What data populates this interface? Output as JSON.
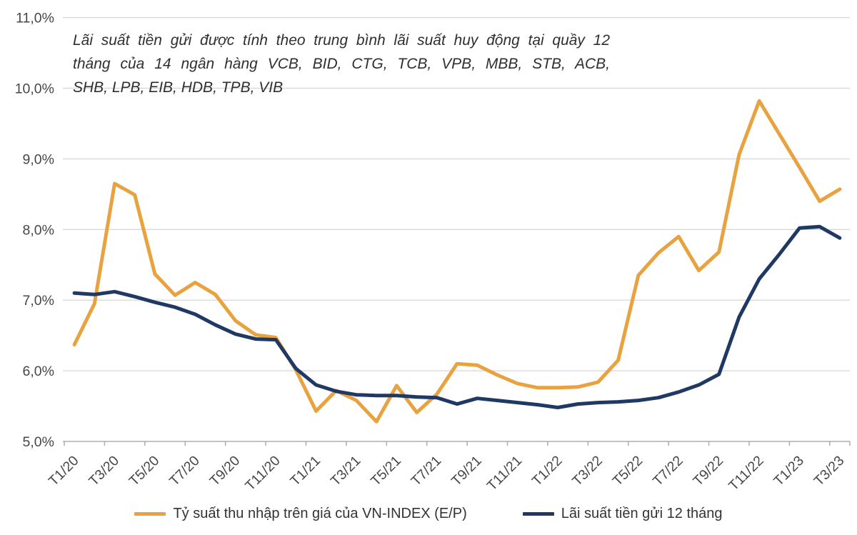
{
  "annotation": {
    "lines": [
      "Lãi suất tiền gửi được tính theo trung bình lãi suất huy động tại quầy 12",
      "tháng của 14 ngân hàng VCB, BID, CTG, TCB, VPB, MBB, STB, ACB,",
      "SHB, LPB, EIB, HDB, TPB, VIB"
    ]
  },
  "colors": {
    "ep_line": "#E9A240",
    "deposit_line": "#1F3864",
    "gridline": "#D9D9D9",
    "axis": "#ADADAD",
    "tick_label": "#474747"
  },
  "chart_data": {
    "type": "line",
    "x": [
      "T1/20",
      "T2/20",
      "T3/20",
      "T4/20",
      "T5/20",
      "T6/20",
      "T7/20",
      "T8/20",
      "T9/20",
      "T10/20",
      "T11/20",
      "T12/20",
      "T1/21",
      "T2/21",
      "T3/21",
      "T4/21",
      "T5/21",
      "T6/21",
      "T7/21",
      "T8/21",
      "T9/21",
      "T10/21",
      "T11/21",
      "T12/21",
      "T1/22",
      "T2/22",
      "T3/22",
      "T4/22",
      "T5/22",
      "T6/22",
      "T7/22",
      "T8/22",
      "T9/22",
      "T10/22",
      "T11/22",
      "T12/22",
      "T1/23",
      "T2/23",
      "T3/23"
    ],
    "x_label_step": 2,
    "series": [
      {
        "name": "Tỷ suất thu nhập trên giá của VN-INDEX (E/P)",
        "color": "#E9A240",
        "values": [
          6.37,
          6.95,
          8.65,
          8.49,
          7.37,
          7.07,
          7.25,
          7.08,
          6.71,
          6.51,
          6.47,
          6.01,
          5.43,
          5.72,
          5.58,
          5.28,
          5.79,
          5.41,
          5.67,
          6.1,
          6.08,
          5.94,
          5.82,
          5.76,
          5.76,
          5.77,
          5.84,
          6.15,
          7.35,
          7.67,
          7.9,
          7.42,
          7.68,
          9.06,
          9.82,
          9.35,
          8.88,
          8.4,
          8.57
        ]
      },
      {
        "name": "Lãi suất tiền gửi 12 tháng",
        "color": "#1F3864",
        "values": [
          7.1,
          7.08,
          7.12,
          7.05,
          6.97,
          6.9,
          6.8,
          6.65,
          6.52,
          6.45,
          6.44,
          6.03,
          5.8,
          5.71,
          5.66,
          5.65,
          5.65,
          5.63,
          5.62,
          5.53,
          5.61,
          5.58,
          5.55,
          5.52,
          5.48,
          5.53,
          5.55,
          5.56,
          5.58,
          5.62,
          5.7,
          5.8,
          5.95,
          6.76,
          7.3,
          7.65,
          8.02,
          8.04,
          7.88
        ]
      }
    ],
    "ylim": [
      5,
      11
    ],
    "yticks": [
      "5,0%",
      "6,0%",
      "7,0%",
      "8,0%",
      "9,0%",
      "10,0%",
      "11,0%"
    ],
    "grid": "horizontal",
    "legend_position": "bottom"
  }
}
